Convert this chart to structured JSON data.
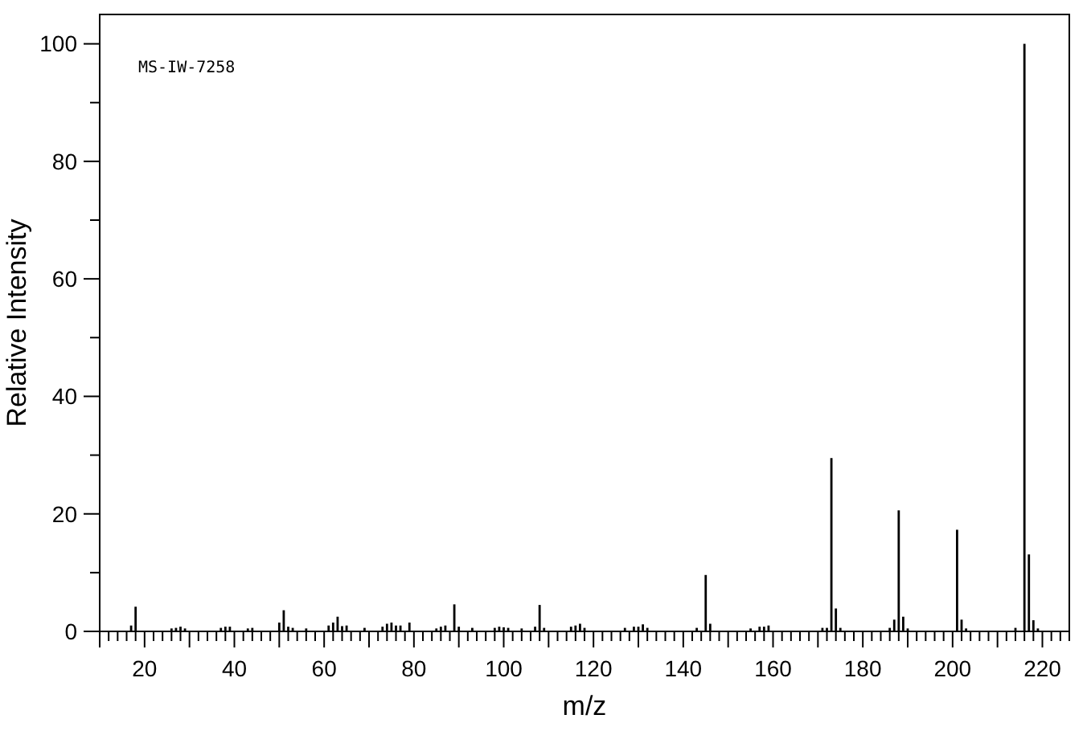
{
  "chart_data": {
    "type": "bar",
    "xlabel": "m/z",
    "ylabel": "Relative Intensity",
    "annotations": [
      "MS-IW-7258"
    ],
    "x": [
      17,
      18,
      26,
      27,
      28,
      29,
      37,
      38,
      39,
      43,
      44,
      50,
      51,
      52,
      53,
      56,
      61,
      62,
      63,
      64,
      65,
      69,
      73,
      74,
      75,
      76,
      77,
      79,
      85,
      86,
      87,
      89,
      90,
      93,
      98,
      99,
      100,
      101,
      104,
      107,
      108,
      109,
      115,
      116,
      117,
      118,
      127,
      129,
      130,
      131,
      132,
      143,
      145,
      146,
      155,
      157,
      158,
      159,
      171,
      172,
      173,
      174,
      175,
      186,
      187,
      188,
      189,
      190,
      201,
      202,
      203,
      214,
      216,
      217,
      218,
      219
    ],
    "values": [
      1.0,
      4.2,
      0.5,
      0.6,
      0.8,
      0.5,
      0.6,
      0.8,
      0.8,
      0.5,
      0.6,
      1.5,
      3.6,
      0.8,
      0.6,
      0.5,
      1.0,
      1.5,
      2.5,
      0.9,
      1.0,
      0.6,
      0.8,
      1.3,
      1.5,
      1.0,
      1.0,
      1.5,
      0.5,
      0.8,
      1.0,
      4.6,
      0.8,
      0.6,
      0.6,
      0.8,
      0.7,
      0.6,
      0.5,
      0.8,
      4.5,
      0.6,
      0.8,
      1.0,
      1.3,
      0.6,
      0.6,
      0.8,
      0.8,
      1.2,
      0.6,
      0.6,
      9.6,
      1.3,
      0.5,
      0.8,
      0.8,
      1.0,
      0.6,
      0.6,
      29.5,
      3.9,
      0.6,
      0.6,
      2.0,
      20.6,
      2.5,
      0.5,
      17.3,
      2.0,
      0.5,
      0.6,
      100,
      13.1,
      1.9,
      0.5
    ],
    "color": "#000000",
    "xlim": [
      10,
      226
    ],
    "xticks": [
      {
        "value": 10,
        "label": null
      },
      {
        "value": 12,
        "label": null
      },
      {
        "value": 14,
        "label": null
      },
      {
        "value": 16,
        "label": null
      },
      {
        "value": 18,
        "label": null
      },
      20,
      {
        "value": 22,
        "label": null
      },
      {
        "value": 24,
        "label": null
      },
      {
        "value": 26,
        "label": null
      },
      {
        "value": 28,
        "label": null
      },
      {
        "value": 30,
        "label": null
      },
      {
        "value": 32,
        "label": null
      },
      {
        "value": 34,
        "label": null
      },
      {
        "value": 36,
        "label": null
      },
      {
        "value": 38,
        "label": null
      },
      40,
      {
        "value": 42,
        "label": null
      },
      {
        "value": 44,
        "label": null
      },
      {
        "value": 46,
        "label": null
      },
      {
        "value": 48,
        "label": null
      },
      {
        "value": 50,
        "label": null
      },
      {
        "value": 52,
        "label": null
      },
      {
        "value": 54,
        "label": null
      },
      {
        "value": 56,
        "label": null
      },
      {
        "value": 58,
        "label": null
      },
      60,
      {
        "value": 62,
        "label": null
      },
      {
        "value": 64,
        "label": null
      },
      {
        "value": 66,
        "label": null
      },
      {
        "value": 68,
        "label": null
      },
      {
        "value": 70,
        "label": null
      },
      {
        "value": 72,
        "label": null
      },
      {
        "value": 74,
        "label": null
      },
      {
        "value": 76,
        "label": null
      },
      {
        "value": 78,
        "label": null
      },
      80,
      {
        "value": 82,
        "label": null
      },
      {
        "value": 84,
        "label": null
      },
      {
        "value": 86,
        "label": null
      },
      {
        "value": 88,
        "label": null
      },
      {
        "value": 90,
        "label": null
      },
      {
        "value": 92,
        "label": null
      },
      {
        "value": 94,
        "label": null
      },
      {
        "value": 96,
        "label": null
      },
      {
        "value": 98,
        "label": null
      },
      100,
      {
        "value": 102,
        "label": null
      },
      {
        "value": 104,
        "label": null
      },
      {
        "value": 106,
        "label": null
      },
      {
        "value": 108,
        "label": null
      },
      {
        "value": 110,
        "label": null
      },
      {
        "value": 112,
        "label": null
      },
      {
        "value": 114,
        "label": null
      },
      {
        "value": 116,
        "label": null
      },
      {
        "value": 118,
        "label": null
      },
      120,
      {
        "value": 122,
        "label": null
      },
      {
        "value": 124,
        "label": null
      },
      {
        "value": 126,
        "label": null
      },
      {
        "value": 128,
        "label": null
      },
      {
        "value": 130,
        "label": null
      },
      {
        "value": 132,
        "label": null
      },
      {
        "value": 134,
        "label": null
      },
      {
        "value": 136,
        "label": null
      },
      {
        "value": 138,
        "label": null
      },
      140,
      {
        "value": 142,
        "label": null
      },
      {
        "value": 144,
        "label": null
      },
      {
        "value": 146,
        "label": null
      },
      {
        "value": 148,
        "label": null
      },
      {
        "value": 150,
        "label": null
      },
      {
        "value": 152,
        "label": null
      },
      {
        "value": 154,
        "label": null
      },
      {
        "value": 156,
        "label": null
      },
      {
        "value": 158,
        "label": null
      },
      160,
      {
        "value": 162,
        "label": null
      },
      {
        "value": 164,
        "label": null
      },
      {
        "value": 166,
        "label": null
      },
      {
        "value": 168,
        "label": null
      },
      {
        "value": 170,
        "label": null
      },
      {
        "value": 172,
        "label": null
      },
      {
        "value": 174,
        "label": null
      },
      {
        "value": 176,
        "label": null
      },
      {
        "value": 178,
        "label": null
      },
      180,
      {
        "value": 182,
        "label": null
      },
      {
        "value": 184,
        "label": null
      },
      {
        "value": 186,
        "label": null
      },
      {
        "value": 188,
        "label": null
      },
      {
        "value": 190,
        "label": null
      },
      {
        "value": 192,
        "label": null
      },
      {
        "value": 194,
        "label": null
      },
      {
        "value": 196,
        "label": null
      },
      {
        "value": 198,
        "label": null
      },
      200,
      {
        "value": 202,
        "label": null
      },
      {
        "value": 204,
        "label": null
      },
      {
        "value": 206,
        "label": null
      },
      {
        "value": 208,
        "label": null
      },
      {
        "value": 210,
        "label": null
      },
      {
        "value": 212,
        "label": null
      },
      {
        "value": 214,
        "label": null
      },
      {
        "value": 216,
        "label": null
      },
      {
        "value": 218,
        "label": null
      },
      220,
      {
        "value": 222,
        "label": null
      },
      {
        "value": 224,
        "label": null
      },
      {
        "value": 226,
        "label": null
      }
    ],
    "ylim": [
      0,
      105
    ],
    "yticks": [
      0,
      {
        "value": 10,
        "label": null
      },
      20,
      {
        "value": 30,
        "label": null
      },
      40,
      {
        "value": 50,
        "label": null
      },
      60,
      {
        "value": 70,
        "label": null
      },
      80,
      {
        "value": 90,
        "label": null
      },
      100
    ]
  }
}
